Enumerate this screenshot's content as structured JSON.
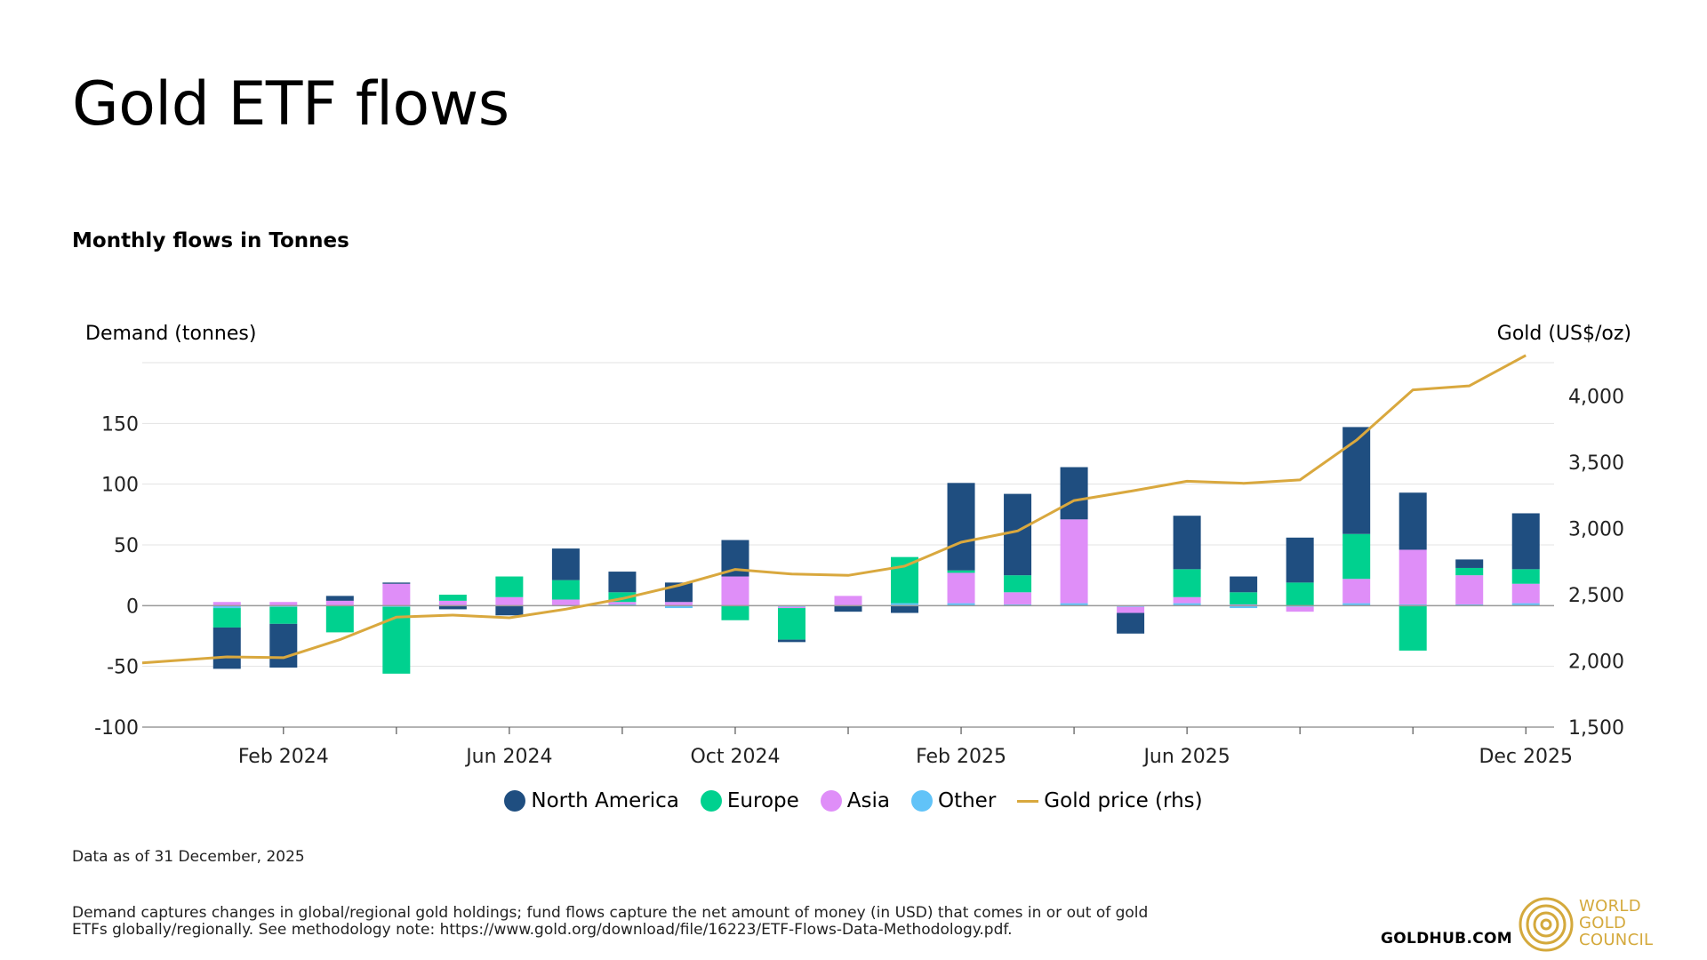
{
  "title": "Gold ETF flows",
  "subtitle": "Monthly flows in Tonnes",
  "axis_titles": {
    "left": "Demand (tonnes)",
    "right": "Gold (US$/oz)"
  },
  "legend": [
    {
      "label": "North America",
      "color": "#1f4e80",
      "kind": "dot"
    },
    {
      "label": "Europe",
      "color": "#00d18f",
      "kind": "dot"
    },
    {
      "label": "Asia",
      "color": "#df8ef8",
      "kind": "dot"
    },
    {
      "label": "Other",
      "color": "#61c3f8",
      "kind": "dot"
    },
    {
      "label": "Gold price (rhs)",
      "color": "#d9a83e",
      "kind": "line"
    }
  ],
  "note": "Data as of 31 December, 2025",
  "footnote": "Demand captures changes in global/regional gold holdings; fund flows capture the net amount of money (in USD) that comes in or out of gold ETFs globally/regionally. See methodology note: https://www.gold.org/download/file/16223/ETF-Flows-Data-Methodology.pdf.",
  "branding": {
    "site": "GOLDHUB.COM",
    "logo_lines": [
      "WORLD",
      "GOLD",
      "COUNCIL"
    ],
    "logo_color": "#d4a93c"
  },
  "chart_data": {
    "type": "bar",
    "stacked": true,
    "title": "Monthly flows in Tonnes",
    "ylabel": "Demand (tonnes)",
    "y2label": "Gold (US$/oz)",
    "ylim": [
      -100,
      200
    ],
    "y2lim": [
      1500,
      4250
    ],
    "yticks": [
      -100,
      -50,
      0,
      50,
      100,
      150
    ],
    "y2ticks": [
      1500,
      2000,
      2500,
      3000,
      3500,
      4000
    ],
    "ytick_labels": [
      "-100",
      "-50",
      "0",
      "50",
      "100",
      "150"
    ],
    "y2tick_labels": [
      "1,500",
      "2,000",
      "2,500",
      "3,000",
      "3,500",
      "4,000"
    ],
    "categories": [
      "Dec 2023",
      "Jan 2024",
      "Feb 2024",
      "Mar 2024",
      "Apr 2024",
      "May 2024",
      "Jun 2024",
      "Jul 2024",
      "Aug 2024",
      "Sep 2024",
      "Oct 2024",
      "Nov 2024",
      "Dec 2024",
      "Jan 2025",
      "Feb 2025",
      "Mar 2025",
      "Apr 2025",
      "May 2025",
      "Jun 2025",
      "Jul 2025",
      "Aug 2025",
      "Sep 2025",
      "Oct 2025",
      "Nov 2025",
      "Dec 2025"
    ],
    "xtick_labels": [
      {
        "index": 2,
        "label": "Feb 2024"
      },
      {
        "index": 6,
        "label": "Jun 2024"
      },
      {
        "index": 10,
        "label": "Oct 2024"
      },
      {
        "index": 14,
        "label": "Feb 2025"
      },
      {
        "index": 18,
        "label": "Jun 2025"
      },
      {
        "index": 24,
        "label": "Dec 2025"
      }
    ],
    "xtick_marks": [
      2,
      4,
      6,
      8,
      10,
      12,
      14,
      16,
      18,
      20,
      22,
      24
    ],
    "series": [
      {
        "name": "North America",
        "color": "#1f4e80",
        "values": [
          null,
          -34,
          -36,
          4,
          1,
          -3,
          -8,
          26,
          17,
          16,
          30,
          -2,
          -5,
          -6,
          72,
          67,
          43,
          -17,
          44,
          13,
          37,
          88,
          47,
          7,
          46
        ]
      },
      {
        "name": "Europe",
        "color": "#00d18f",
        "values": [
          null,
          -16,
          -14,
          -22,
          -55,
          5,
          17,
          16,
          8,
          0,
          -12,
          -26,
          0,
          38,
          2,
          14,
          0,
          0,
          23,
          10,
          19,
          37,
          -37,
          6,
          12
        ]
      },
      {
        "name": "Asia",
        "color": "#df8ef8",
        "values": [
          null,
          3,
          3,
          4,
          18,
          4,
          7,
          5,
          2,
          3,
          24,
          -1,
          8,
          0,
          25,
          10,
          69,
          -5,
          5,
          1,
          -4,
          20,
          45,
          24,
          16
        ]
      },
      {
        "name": "Other",
        "color": "#61c3f8",
        "values": [
          null,
          -2,
          -1,
          0,
          -1,
          0,
          0,
          0,
          1,
          -2,
          0,
          -1,
          0,
          2,
          2,
          1,
          2,
          -1,
          2,
          -2,
          -1,
          2,
          1,
          1,
          2
        ]
      }
    ],
    "line_series": {
      "name": "Gold price (rhs)",
      "color": "#d9a83e",
      "axis": "right",
      "values": [
        1985,
        2030,
        2024,
        2160,
        2330,
        2345,
        2325,
        2390,
        2470,
        2570,
        2690,
        2655,
        2645,
        2715,
        2895,
        2980,
        3210,
        3280,
        3355,
        3340,
        3365,
        3665,
        4045,
        4075,
        4305
      ]
    }
  }
}
